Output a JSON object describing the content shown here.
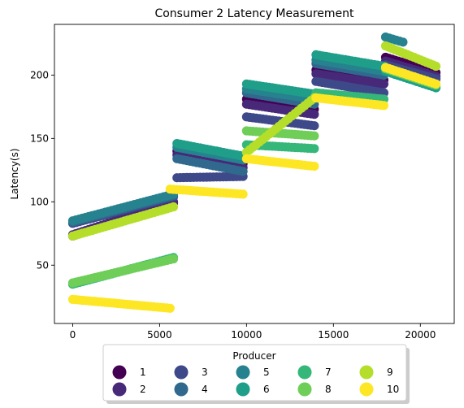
{
  "chart_data": {
    "type": "scatter",
    "title": "Consumer 2 Latency Measurement",
    "xlabel": "",
    "ylabel": "Latency(s)",
    "xlim": [
      -1050,
      21950
    ],
    "ylim": [
      4,
      240
    ],
    "xticks": [
      0,
      5000,
      10000,
      15000,
      20000
    ],
    "xtick_labels": [
      "0",
      "5000",
      "10000",
      "15000",
      "20000"
    ],
    "yticks": [
      50,
      100,
      150,
      200
    ],
    "ytick_labels": [
      "50",
      "100",
      "150",
      "200"
    ],
    "grid": false,
    "legend": {
      "title": "Producer",
      "placement": "bottom-center",
      "columns": 5,
      "entries": [
        "1",
        "2",
        "3",
        "4",
        "5",
        "6",
        "7",
        "8",
        "9",
        "10"
      ]
    },
    "colors": [
      "#440154",
      "#482878",
      "#3e4989",
      "#31688e",
      "#26828e",
      "#1f9e89",
      "#35b779",
      "#6ece58",
      "#b5de2b",
      "#fde725"
    ],
    "series": [
      {
        "name": "1",
        "segments": [
          {
            "x0": 0,
            "y0": 73,
            "x1": 5800,
            "y1": 99
          },
          {
            "x0": 6000,
            "y0": 140,
            "x1": 9800,
            "y1": 130
          },
          {
            "x0": 10000,
            "y0": 181,
            "x1": 13900,
            "y1": 173
          },
          {
            "x0": 14000,
            "y0": 204,
            "x1": 17900,
            "y1": 196
          },
          {
            "x0": 18000,
            "y0": 214,
            "x1": 20900,
            "y1": 202
          }
        ]
      },
      {
        "name": "2",
        "segments": [
          {
            "x0": 0,
            "y0": 74,
            "x1": 5800,
            "y1": 100
          },
          {
            "x0": 6000,
            "y0": 137,
            "x1": 9800,
            "y1": 127
          },
          {
            "x0": 10000,
            "y0": 177,
            "x1": 13900,
            "y1": 169
          },
          {
            "x0": 14000,
            "y0": 201,
            "x1": 17900,
            "y1": 193
          },
          {
            "x0": 18000,
            "y0": 211,
            "x1": 20900,
            "y1": 199
          }
        ]
      },
      {
        "name": "3",
        "segments": [
          {
            "x0": 0,
            "y0": 83,
            "x1": 5800,
            "y1": 104
          },
          {
            "x0": 6000,
            "y0": 119,
            "x1": 9800,
            "y1": 120
          },
          {
            "x0": 10000,
            "y0": 167,
            "x1": 13900,
            "y1": 160
          },
          {
            "x0": 14000,
            "y0": 195,
            "x1": 17900,
            "y1": 186
          },
          {
            "x0": 18000,
            "y0": 208,
            "x1": 20900,
            "y1": 197
          }
        ]
      },
      {
        "name": "4",
        "segments": [
          {
            "x0": 0,
            "y0": 84,
            "x1": 5800,
            "y1": 105
          },
          {
            "x0": 6000,
            "y0": 134,
            "x1": 9800,
            "y1": 124
          },
          {
            "x0": 10000,
            "y0": 186,
            "x1": 13900,
            "y1": 177
          },
          {
            "x0": 14000,
            "y0": 209,
            "x1": 17900,
            "y1": 200
          }
        ]
      },
      {
        "name": "5",
        "segments": [
          {
            "x0": 0,
            "y0": 85,
            "x1": 5800,
            "y1": 106
          },
          {
            "x0": 6000,
            "y0": 143,
            "x1": 9800,
            "y1": 133
          },
          {
            "x0": 10000,
            "y0": 189,
            "x1": 13900,
            "y1": 181
          },
          {
            "x0": 14000,
            "y0": 212,
            "x1": 17900,
            "y1": 203
          },
          {
            "x0": 18000,
            "y0": 230,
            "x1": 19000,
            "y1": 226
          }
        ]
      },
      {
        "name": "6",
        "segments": [
          {
            "x0": 6000,
            "y0": 146,
            "x1": 9800,
            "y1": 136
          },
          {
            "x0": 10000,
            "y0": 193,
            "x1": 13900,
            "y1": 185
          },
          {
            "x0": 14000,
            "y0": 216,
            "x1": 17900,
            "y1": 207
          },
          {
            "x0": 18000,
            "y0": 203,
            "x1": 20900,
            "y1": 190
          }
        ]
      },
      {
        "name": "7",
        "segments": [
          {
            "x0": 0,
            "y0": 35,
            "x1": 5800,
            "y1": 56
          },
          {
            "x0": 10000,
            "y0": 145,
            "x1": 13900,
            "y1": 142
          },
          {
            "x0": 14000,
            "y0": 186,
            "x1": 17900,
            "y1": 181
          }
        ]
      },
      {
        "name": "8",
        "segments": [
          {
            "x0": 0,
            "y0": 36,
            "x1": 5800,
            "y1": 55
          },
          {
            "x0": 10000,
            "y0": 156,
            "x1": 13900,
            "y1": 152
          },
          {
            "x0": 18000,
            "y0": 205,
            "x1": 20900,
            "y1": 192
          }
        ]
      },
      {
        "name": "9",
        "segments": [
          {
            "x0": 0,
            "y0": 73,
            "x1": 5800,
            "y1": 96
          },
          {
            "x0": 10000,
            "y0": 139,
            "x1": 13900,
            "y1": 182
          },
          {
            "x0": 18000,
            "y0": 223,
            "x1": 20900,
            "y1": 207
          }
        ]
      },
      {
        "name": "10",
        "segments": [
          {
            "x0": 0,
            "y0": 23,
            "x1": 5600,
            "y1": 16
          },
          {
            "x0": 5600,
            "y0": 110,
            "x1": 9800,
            "y1": 106
          },
          {
            "x0": 10000,
            "y0": 134,
            "x1": 13900,
            "y1": 128
          },
          {
            "x0": 14000,
            "y0": 182,
            "x1": 17900,
            "y1": 176
          },
          {
            "x0": 18000,
            "y0": 206,
            "x1": 20900,
            "y1": 193
          }
        ]
      }
    ]
  }
}
